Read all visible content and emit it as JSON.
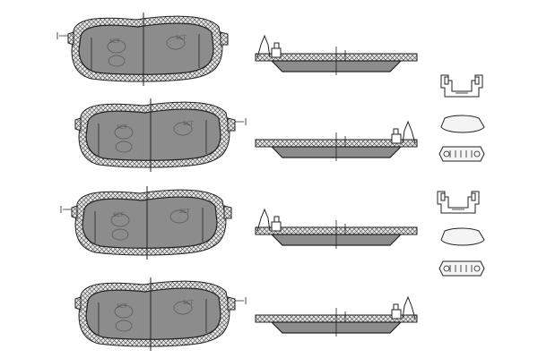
{
  "diagram": {
    "subject": "brake-pad-set",
    "pad_count": 4,
    "pads": [
      {
        "view": "front",
        "row": 1,
        "hardware": "wear-sensor-left"
      },
      {
        "view": "front",
        "row": 2,
        "hardware": "wear-sensor-right"
      },
      {
        "view": "front",
        "row": 3,
        "hardware": "wear-sensor-left"
      },
      {
        "view": "front",
        "row": 4,
        "hardware": "wear-sensor-right"
      }
    ],
    "side_views": 4,
    "accessory_groups": 2,
    "logo_text": "SCT",
    "colors": {
      "pad": "#8c8c8c",
      "outline": "#222222",
      "background": "#ffffff"
    }
  }
}
